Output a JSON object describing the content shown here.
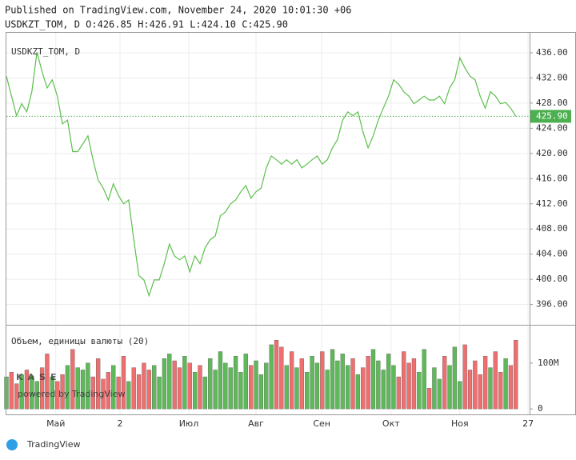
{
  "header": {
    "published": "Published on TradingView.com, November 24, 2020 10:01:30 +06",
    "ohlc": "USDKZT_TOM, D O:426.85 H:426.91 L:424.10 C:425.90"
  },
  "watermark": {
    "logo": "KASE",
    "powered": "powered by TradingView"
  },
  "footer": {
    "brand": "TradingView"
  },
  "chart_data": [
    {
      "type": "line",
      "title": "USDKZT_TOM, D",
      "color": "#5cbf4c",
      "grid": true,
      "values": [
        432.3,
        429.1,
        426.0,
        427.9,
        426.6,
        429.8,
        436.1,
        433.0,
        430.4,
        431.7,
        429.1,
        424.7,
        425.3,
        420.3,
        420.3,
        421.5,
        422.8,
        419.0,
        415.8,
        414.5,
        412.6,
        415.2,
        413.3,
        412.0,
        412.6,
        406.3,
        400.6,
        399.9,
        397.4,
        399.9,
        399.9,
        402.5,
        405.6,
        403.7,
        403.1,
        403.7,
        401.2,
        403.7,
        402.5,
        405.0,
        406.3,
        406.9,
        410.1,
        410.7,
        412.0,
        412.6,
        413.9,
        414.9,
        412.9,
        413.9,
        414.5,
        417.7,
        419.6,
        419.0,
        418.3,
        419.0,
        418.3,
        419.0,
        417.7,
        418.3,
        419.0,
        419.6,
        418.3,
        419.0,
        420.9,
        422.2,
        425.3,
        426.6,
        426.0,
        426.6,
        423.4,
        420.9,
        422.8,
        425.3,
        427.2,
        429.1,
        431.7,
        431.0,
        429.8,
        429.1,
        427.9,
        428.5,
        429.1,
        428.5,
        428.5,
        429.1,
        427.9,
        430.4,
        431.7,
        435.2,
        433.6,
        432.3,
        431.7,
        429.1,
        427.2,
        429.8,
        429.1,
        427.9,
        428.1,
        427.2,
        425.9
      ],
      "last": {
        "value": 425.9,
        "label": "425.90",
        "color": "#4caf50"
      },
      "xlim": [
        0,
        102.7
      ],
      "xticks": [
        {
          "value": 9.7,
          "label": "Май"
        },
        {
          "value": 22.3,
          "label": "2"
        },
        {
          "value": 35.8,
          "label": "Июл"
        },
        {
          "value": 49.0,
          "label": "Авг"
        },
        {
          "value": 61.9,
          "label": "Сен"
        },
        {
          "value": 75.5,
          "label": "Окт"
        },
        {
          "value": 89.0,
          "label": "Ноя"
        },
        {
          "value": 102.4,
          "label": "27"
        }
      ],
      "ylim": [
        392.9,
        439.3
      ],
      "yticks": [
        {
          "value": 396,
          "label": "396.00"
        },
        {
          "value": 400,
          "label": "400.00"
        },
        {
          "value": 404,
          "label": "404.00"
        },
        {
          "value": 408,
          "label": "408.00"
        },
        {
          "value": 412,
          "label": "412.00"
        },
        {
          "value": 416,
          "label": "416.00"
        },
        {
          "value": 420,
          "label": "420.00"
        },
        {
          "value": 424,
          "label": "424.00"
        },
        {
          "value": 428,
          "label": "428.00"
        },
        {
          "value": 432,
          "label": "432.00"
        },
        {
          "value": 436,
          "label": "436.00"
        }
      ]
    },
    {
      "type": "bar",
      "title": "Объем, единицы валюты (20)",
      "up_color": "#5fb85a",
      "down_color": "#ee6f6f",
      "values": [
        70,
        80,
        55,
        75,
        85,
        72,
        60,
        90,
        120,
        70,
        60,
        75,
        95,
        130,
        90,
        85,
        100,
        70,
        110,
        65,
        80,
        95,
        70,
        115,
        60,
        90,
        75,
        100,
        85,
        95,
        70,
        110,
        120,
        105,
        90,
        115,
        100,
        80,
        95,
        70,
        110,
        85,
        125,
        100,
        90,
        115,
        80,
        120,
        95,
        105,
        75,
        100,
        140,
        150,
        135,
        95,
        125,
        90,
        110,
        80,
        115,
        100,
        125,
        85,
        130,
        105,
        120,
        95,
        110,
        75,
        90,
        115,
        130,
        105,
        85,
        120,
        95,
        70,
        125,
        100,
        110,
        80,
        130,
        45,
        90,
        65,
        115,
        95,
        135,
        60,
        140,
        85,
        105,
        75,
        115,
        90,
        125,
        80,
        110,
        95,
        150
      ],
      "ylim": [
        -12,
        180
      ],
      "yticks": [
        0,
        {
          "value": 100,
          "label": "100M"
        }
      ]
    }
  ]
}
